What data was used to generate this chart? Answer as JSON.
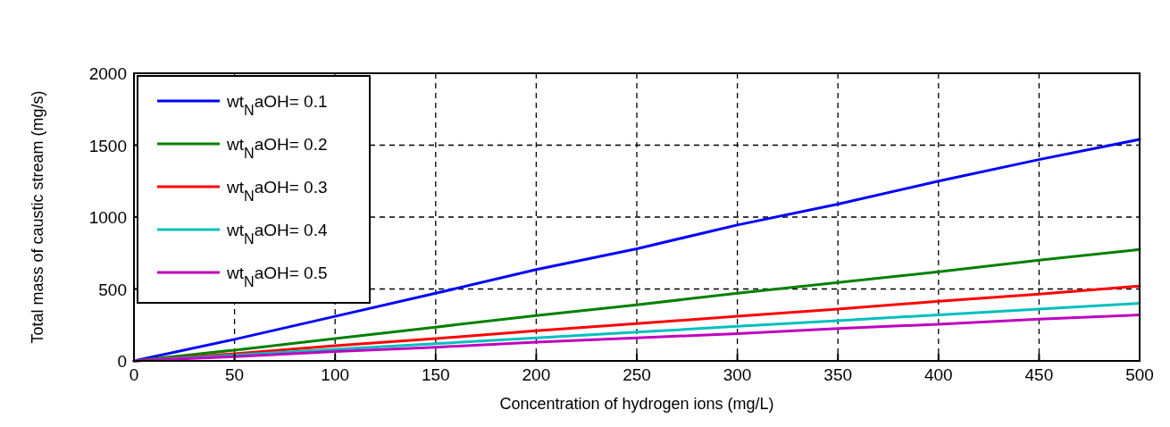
{
  "chart_data": {
    "type": "line",
    "xlabel": "Concentration of hydrogen ions (mg/L)",
    "ylabel": "Total mass of caustic stream (mg/s)",
    "x": [
      0,
      50,
      100,
      150,
      200,
      250,
      300,
      350,
      400,
      450,
      500
    ],
    "series": [
      {
        "name": "wt$_{N}$aOH= 0.1",
        "color": "#0000ff",
        "values": [
          0,
          150,
          310,
          470,
          635,
          780,
          945,
          1090,
          1250,
          1400,
          1540
        ]
      },
      {
        "name": "wt$_{N}$aOH= 0.2",
        "color": "#008000",
        "values": [
          0,
          75,
          155,
          235,
          315,
          390,
          470,
          545,
          620,
          700,
          775
        ]
      },
      {
        "name": "wt$_{N}$aOH= 0.3",
        "color": "#ff0000",
        "values": [
          0,
          50,
          105,
          155,
          210,
          260,
          310,
          360,
          415,
          465,
          520
        ]
      },
      {
        "name": "wt$_{N}$aOH= 0.4",
        "color": "#00bfbf",
        "values": [
          0,
          40,
          80,
          120,
          160,
          200,
          240,
          280,
          320,
          360,
          400
        ]
      },
      {
        "name": "wt$_{N}$aOH= 0.5",
        "color": "#bf00bf",
        "values": [
          0,
          30,
          65,
          95,
          130,
          160,
          190,
          225,
          255,
          290,
          320
        ]
      }
    ],
    "xlim": [
      0,
      500
    ],
    "xticks": [
      0,
      50,
      100,
      150,
      200,
      250,
      300,
      350,
      400,
      450,
      500
    ],
    "ylim": [
      0,
      2000
    ],
    "yticks": [
      0,
      500,
      1000,
      1500,
      2000
    ],
    "grid": true,
    "legend": "top left",
    "line_style": "solid",
    "marker": "none"
  }
}
